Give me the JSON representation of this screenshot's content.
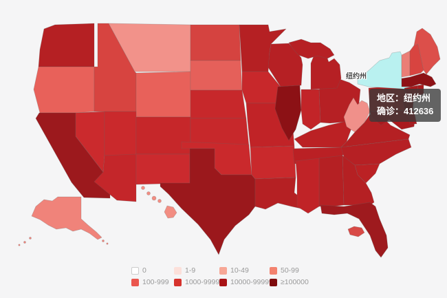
{
  "background_color": "#f5f5f6",
  "map_label": {
    "text": "纽约州"
  },
  "tooltip": {
    "region_label": "地区：",
    "region_value": "纽约州",
    "confirmed_label": "确诊：",
    "confirmed_value": "412636"
  },
  "legend": {
    "items": [
      {
        "label": "0",
        "color": "#ffffff"
      },
      {
        "label": "1-9",
        "color": "#fce0da"
      },
      {
        "label": "10-49",
        "color": "#f7a796"
      },
      {
        "label": "50-99",
        "color": "#f3826f"
      },
      {
        "label": "100-999",
        "color": "#ea564e"
      },
      {
        "label": "1000-9999",
        "color": "#d6332d"
      },
      {
        "label": "10000-99999",
        "color": "#a81215"
      },
      {
        "label": "≥100000",
        "color": "#7e0b0d"
      }
    ]
  },
  "chart_data": {
    "type": "choropleth_map",
    "region": "United States",
    "metric_label": "确诊",
    "highlighted_state": {
      "name_zh": "纽约州",
      "name_en": "New York",
      "confirmed": 412636,
      "highlight_color": "#b9f1f0"
    },
    "legend_buckets": [
      "0",
      "1-9",
      "10-49",
      "50-99",
      "100-999",
      "1000-9999",
      "10000-99999",
      "≥100000"
    ],
    "states": [
      {
        "id": "WA",
        "name": "Washington",
        "category": "10000-99999",
        "fill": "#b52023"
      },
      {
        "id": "OR",
        "name": "Oregon",
        "category": "100-999",
        "fill": "#e8615a"
      },
      {
        "id": "CA",
        "name": "California",
        "category": "≥100000",
        "fill": "#9c191d"
      },
      {
        "id": "NV",
        "name": "Nevada",
        "category": "1000-9999",
        "fill": "#cb2a2d"
      },
      {
        "id": "ID",
        "name": "Idaho",
        "category": "1000-9999",
        "fill": "#d74440"
      },
      {
        "id": "MT",
        "name": "Montana",
        "category": "50-99",
        "fill": "#f2928a"
      },
      {
        "id": "WY",
        "name": "Wyoming",
        "category": "100-999",
        "fill": "#e8615a"
      },
      {
        "id": "UT",
        "name": "Utah",
        "category": "1000-9999",
        "fill": "#ca292c"
      },
      {
        "id": "CO",
        "name": "Colorado",
        "category": "1000-9999",
        "fill": "#c6272a"
      },
      {
        "id": "AZ",
        "name": "Arizona",
        "category": "1000-9999",
        "fill": "#c4262a"
      },
      {
        "id": "NM",
        "name": "New Mexico",
        "category": "1000-9999",
        "fill": "#cb2a2e"
      },
      {
        "id": "ND",
        "name": "North Dakota",
        "category": "1000-9999",
        "fill": "#d54340"
      },
      {
        "id": "SD",
        "name": "South Dakota",
        "category": "100-999",
        "fill": "#e5605a"
      },
      {
        "id": "NE",
        "name": "Nebraska",
        "category": "1000-9999",
        "fill": "#c7282b"
      },
      {
        "id": "KS",
        "name": "Kansas",
        "category": "1000-9999",
        "fill": "#c7282b"
      },
      {
        "id": "OK",
        "name": "Oklahoma",
        "category": "1000-9999",
        "fill": "#ca292c"
      },
      {
        "id": "TX",
        "name": "Texas",
        "category": "≥100000",
        "fill": "#9b181c"
      },
      {
        "id": "MN",
        "name": "Minnesota",
        "category": "10000-99999",
        "fill": "#b52023"
      },
      {
        "id": "IA",
        "name": "Iowa",
        "category": "1000-9999",
        "fill": "#c8282b"
      },
      {
        "id": "MO",
        "name": "Missouri",
        "category": "10000-99999",
        "fill": "#c12327"
      },
      {
        "id": "AR",
        "name": "Arkansas",
        "category": "1000-9999",
        "fill": "#c9292c"
      },
      {
        "id": "LA",
        "name": "Louisiana",
        "category": "10000-99999",
        "fill": "#b52023"
      },
      {
        "id": "WI",
        "name": "Wisconsin",
        "category": "10000-99999",
        "fill": "#b62024"
      },
      {
        "id": "IL",
        "name": "Illinois",
        "category": "≥100000",
        "fill": "#8c1115"
      },
      {
        "id": "IN",
        "name": "Indiana",
        "category": "10000-99999",
        "fill": "#c22428"
      },
      {
        "id": "OH",
        "name": "Ohio",
        "category": "10000-99999",
        "fill": "#b62024"
      },
      {
        "id": "MI",
        "name": "Michigan",
        "category": "10000-99999",
        "fill": "#b62024"
      },
      {
        "id": "KY",
        "name": "Kentucky",
        "category": "10000-99999",
        "fill": "#bb2124"
      },
      {
        "id": "TN",
        "name": "Tennessee",
        "category": "10000-99999",
        "fill": "#ba2024"
      },
      {
        "id": "WV",
        "name": "West Virginia",
        "category": "100-999",
        "fill": "#f0908a"
      },
      {
        "id": "VA",
        "name": "Virginia",
        "category": "10000-99999",
        "fill": "#b52023"
      },
      {
        "id": "NC",
        "name": "North Carolina",
        "category": "10000-99999",
        "fill": "#b62024"
      },
      {
        "id": "SC",
        "name": "South Carolina",
        "category": "10000-99999",
        "fill": "#bb2124"
      },
      {
        "id": "GA",
        "name": "Georgia",
        "category": "10000-99999",
        "fill": "#b52023"
      },
      {
        "id": "AL",
        "name": "Alabama",
        "category": "10000-99999",
        "fill": "#b52023"
      },
      {
        "id": "MS",
        "name": "Mississippi",
        "category": "10000-99999",
        "fill": "#c02327"
      },
      {
        "id": "FL",
        "name": "Florida",
        "category": "≥100000",
        "fill": "#9e1a1e"
      },
      {
        "id": "PA",
        "name": "Pennsylvania",
        "category": "10000-99999",
        "fill": "#b52023"
      },
      {
        "id": "NY",
        "name": "New York",
        "category": "≥100000",
        "fill": "#b9f1f0",
        "highlighted": true
      },
      {
        "id": "NJ",
        "name": "New Jersey",
        "category": "≥100000",
        "fill": "#8d1215"
      },
      {
        "id": "MD",
        "name": "Maryland",
        "category": "10000-99999",
        "fill": "#a91a1e"
      },
      {
        "id": "DE",
        "name": "Delaware",
        "category": "10000-99999",
        "fill": "#a91a1e"
      },
      {
        "id": "VT",
        "name": "Vermont",
        "category": "100-999",
        "fill": "#ea7e76"
      },
      {
        "id": "NH",
        "name": "New Hampshire",
        "category": "1000-9999",
        "fill": "#d84440"
      },
      {
        "id": "ME",
        "name": "Maine",
        "category": "1000-9999",
        "fill": "#dc4f4a"
      },
      {
        "id": "MA",
        "name": "Massachusetts",
        "category": "≥100000",
        "fill": "#8e1216"
      },
      {
        "id": "CT",
        "name": "Connecticut",
        "category": "10000-99999",
        "fill": "#a81a1d"
      },
      {
        "id": "RI",
        "name": "Rhode Island",
        "category": "10000-99999",
        "fill": "#a81a1d"
      },
      {
        "id": "AK",
        "name": "Alaska",
        "category": "100-999",
        "fill": "#f0837a"
      },
      {
        "id": "HI",
        "name": "Hawaii",
        "category": "50-99",
        "fill": "#f28d82"
      },
      {
        "id": "PR",
        "name": "Puerto Rico",
        "category": "1000-9999",
        "fill": "#d84a46"
      }
    ]
  }
}
